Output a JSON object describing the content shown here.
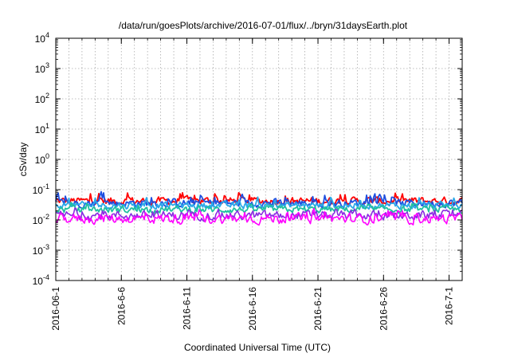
{
  "chart_data": {
    "type": "line",
    "title": "/data/run/goesPlots/archive/2016-07-01/flux/../bryn/31daysEarth.plot",
    "xlabel": "Coordinated Universal Time (UTC)",
    "ylabel": "cSv/day",
    "x_ticks": [
      "2016-06-1",
      "2016-6-6",
      "2016-6-11",
      "2016-6-16",
      "2016-6-21",
      "2016-6-26",
      "2016-7-1"
    ],
    "x_range": [
      "2016-06-01",
      "2016-07-02"
    ],
    "y_scale": "log",
    "ylim": [
      0.0001,
      10000
    ],
    "y_ticks": [
      {
        "base": "10",
        "exp": "-4"
      },
      {
        "base": "10",
        "exp": "-3"
      },
      {
        "base": "10",
        "exp": "-2"
      },
      {
        "base": "10",
        "exp": "-1"
      },
      {
        "base": "10",
        "exp": "0"
      },
      {
        "base": "10",
        "exp": "1"
      },
      {
        "base": "10",
        "exp": "2"
      },
      {
        "base": "10",
        "exp": "3"
      },
      {
        "base": "10",
        "exp": "4"
      }
    ],
    "grid": true,
    "series": [
      {
        "color": "#ff0000",
        "baseline": 0.042,
        "spread": 0.4,
        "peak": 0.13
      },
      {
        "color": "#1e4fe0",
        "baseline": 0.036,
        "spread": 0.4,
        "peak": 0.11
      },
      {
        "color": "#2aa8e8",
        "baseline": 0.03,
        "spread": 0.35,
        "peak": 0.08
      },
      {
        "color": "#20c0a0",
        "baseline": 0.022,
        "spread": 0.35,
        "peak": 0.05
      },
      {
        "color": "#8a2be2",
        "baseline": 0.014,
        "spread": 0.45,
        "peak": 0.035
      },
      {
        "color": "#ff00ff",
        "baseline": 0.011,
        "spread": 0.5,
        "peak": 0.03
      }
    ]
  }
}
